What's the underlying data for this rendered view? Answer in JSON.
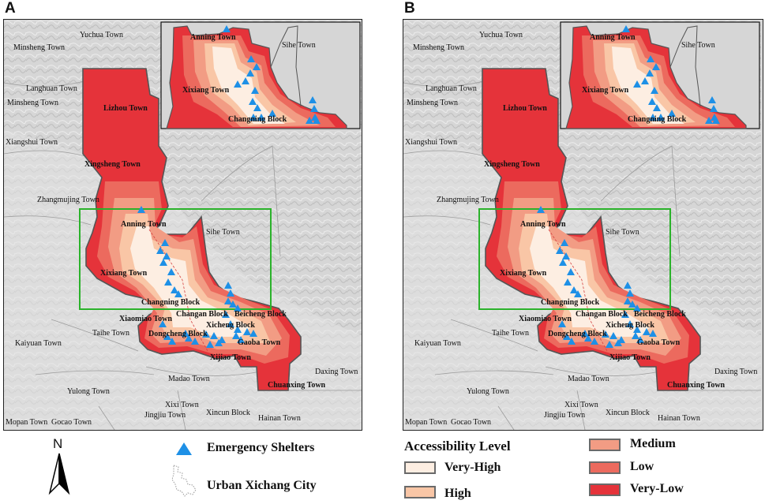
{
  "panels": [
    {
      "letter": "A",
      "labels": {
        "yuchua": "Yuchua Town",
        "minsheng": "Minsheng Town",
        "langhuan": "Langhuan Town",
        "minsheng2": "Minsheng Town",
        "lizhou": "Lizhou Town",
        "xiangshui": "Xiangshui Town",
        "xingsheng": "Xingsheng Town",
        "zhangmujing": "Zhangmujing Town",
        "anning": "Anning Town",
        "sihe": "Sihe Town",
        "xixiang": "Xixiang Town",
        "changning": "Changning Block",
        "xiaomiao": "Xiaomiao Town",
        "changan": "Changan Block",
        "beicheng": "Beicheng Block",
        "taihe": "Taihe Town",
        "xicheng": "Xicheng Block",
        "dongcheng": "Dongcheng Block",
        "gaoba": "Gaoba Town",
        "kaiyuan": "Kaiyuan Town",
        "xijiao": "Xijiao Town",
        "daxing": "Daxing Town",
        "chuanxing": "Chuanxing Town",
        "yulong": "Yulong Town",
        "madao": "Madao Town",
        "xixi": "Xixi Town",
        "jingjiu": "Jingjiu Town",
        "xincun": "Xincun Block",
        "hainan": "Hainan Town",
        "mopan": "Mopan Town",
        "gocao": "Gocao Town",
        "inset_anning": "Anning Town",
        "inset_sihe": "Sihe Town",
        "inset_xixiang": "Xixiang Town",
        "inset_changning": "Changning Block"
      }
    },
    {
      "letter": "B",
      "labels": {
        "yuchua": "Yuchua Town",
        "minsheng": "Minsheng Town",
        "langhuan": "Langhuan Town",
        "minsheng2": "Minsheng Town",
        "lizhou": "Lizhou Town",
        "xiangshui": "Xiangshui Town",
        "xingsheng": "Xingsheng Town",
        "zhangmujing": "Zhangmujing Town",
        "anning": "Anning Town",
        "sihe": "Sihe Town",
        "xixiang": "Xixiang Town",
        "changning": "Changning Block",
        "xiaomiao": "Xiaomiao Town",
        "changan": "Changan Block",
        "beicheng": "Beicheng Block",
        "taihe": "Taihe Town",
        "xicheng": "Xicheng Block",
        "dongcheng": "Dongcheng Block",
        "gaoba": "Gaoba Town",
        "kaiyuan": "Kaiyuan Town",
        "xijiao": "Xijiao Town",
        "daxing": "Daxing Town",
        "chuanxing": "Chuanxing Town",
        "yulong": "Yulong Town",
        "madao": "Madao Town",
        "xixi": "Xixi Town",
        "jingjiu": "Jingjiu Town",
        "xincun": "Xincun Block",
        "hainan": "Hainan Town",
        "mopan": "Mopan Town",
        "gocao": "Gocao Town",
        "inset_anning": "Anning Town",
        "inset_sihe": "Sihe Town",
        "inset_xixiang": "Xixiang Town",
        "inset_changning": "Changning Block"
      }
    }
  ],
  "north_arrow": {
    "label": "N",
    "icon": "north-arrow-icon"
  },
  "legend": {
    "shelters": "Emergency Shelters",
    "urban": "Urban Xichang City",
    "accessibility_title": "Accessibility Level",
    "levels": [
      {
        "label": "Very-High",
        "color": "#fdeee2"
      },
      {
        "label": "High",
        "color": "#f9c6a6"
      },
      {
        "label": "Medium",
        "color": "#f29c84"
      },
      {
        "label": "Low",
        "color": "#ec6a5e"
      },
      {
        "label": "Very-Low",
        "color": "#e5333a"
      }
    ]
  },
  "colors": {
    "shelter": "#1e90e6",
    "study_area_box": "#2bb22b",
    "terrain": "#d9d9d9",
    "boundary": "#6e6e6e"
  }
}
